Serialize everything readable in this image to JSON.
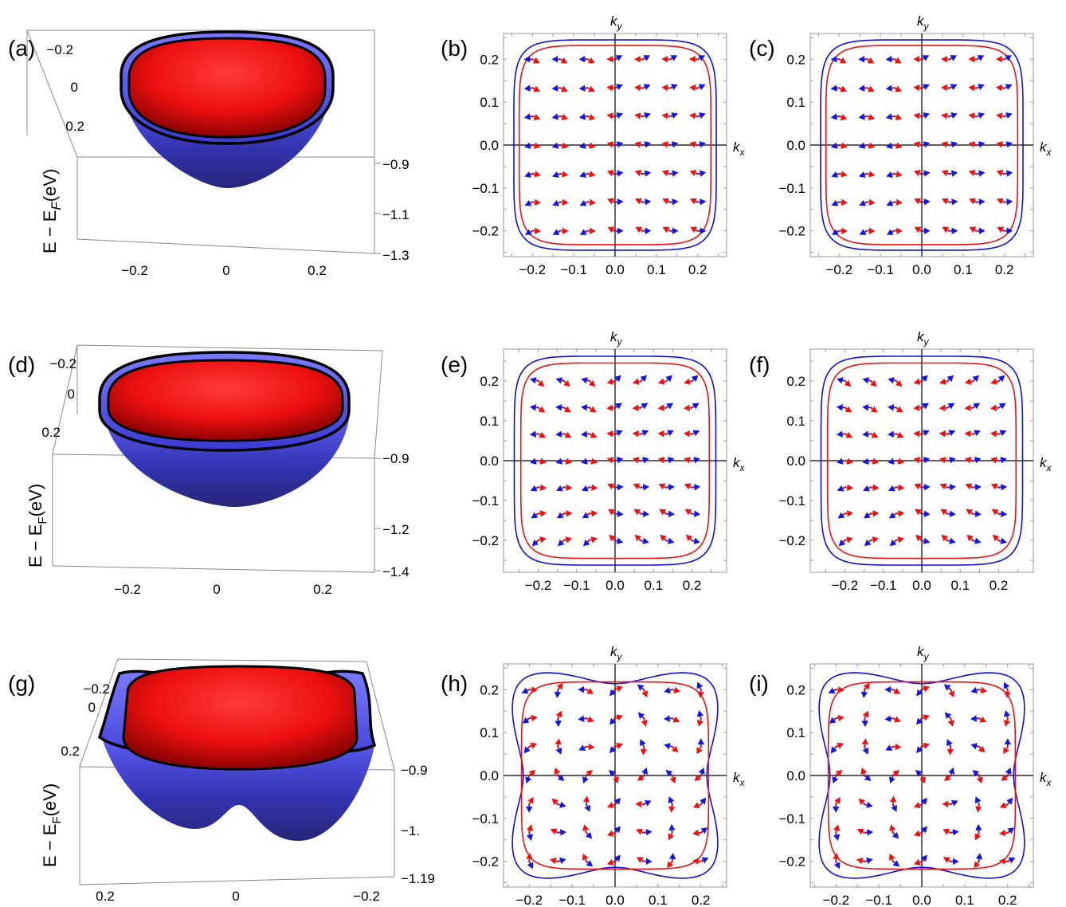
{
  "colors": {
    "outer_band": "#1010dd",
    "inner_band": "#ee1111",
    "arrow_blue": "#1515dd",
    "arrow_red": "#ee1111"
  },
  "surface_label": "E − E",
  "surface_label_sub": "F",
  "surface_label_unit": "(eV)",
  "axis_k_x": "k",
  "axis_k_x_sub": "x",
  "axis_k_y": "k",
  "axis_k_y_sub": "y",
  "chart_data": [
    {
      "id": "a",
      "type": "surface3d",
      "panel_label": "(a)",
      "left_ticks": [
        "−0.2",
        "0",
        "0.2"
      ],
      "bottom_ticks": [
        "−0.2",
        "0",
        "0.2"
      ],
      "right_ticks": [
        "−0.9",
        "−1.1",
        "−1.3"
      ],
      "zlim": [
        -1.3,
        -0.9
      ]
    },
    {
      "id": "b",
      "type": "contour_vector",
      "panel_label": "(b)",
      "xlim": [
        -0.27,
        0.27
      ],
      "ylim": [
        -0.26,
        0.26
      ],
      "x_ticks": [
        "−0.2",
        "−0.1",
        "0.0",
        "0.1",
        "0.2"
      ],
      "y_ticks": [
        "0.2",
        "0.1",
        "0.0",
        "−0.1",
        "−0.2"
      ],
      "outer_contour_radius": 0.245,
      "inner_contour_radius": 0.232,
      "squareness": 6
    },
    {
      "id": "c",
      "type": "contour_vector",
      "panel_label": "(c)",
      "xlim": [
        -0.27,
        0.27
      ],
      "ylim": [
        -0.26,
        0.26
      ],
      "x_ticks": [
        "−0.2",
        "−0.1",
        "0.0",
        "0.1",
        "0.2"
      ],
      "y_ticks": [
        "0.2",
        "0.1",
        "0.0",
        "−0.1",
        "−0.2"
      ],
      "outer_contour_radius": 0.245,
      "inner_contour_radius": 0.232,
      "squareness": 6
    },
    {
      "id": "d",
      "type": "surface3d",
      "panel_label": "(d)",
      "left_ticks": [
        "−0.2",
        "0",
        "0.2"
      ],
      "bottom_ticks": [
        "−0.2",
        "0",
        "0.2"
      ],
      "right_ticks": [
        "−0.9",
        "−1.2",
        "−1.4"
      ],
      "zlim": [
        -1.4,
        -0.9
      ]
    },
    {
      "id": "e",
      "type": "contour_vector",
      "panel_label": "(e)",
      "xlim": [
        -0.29,
        0.29
      ],
      "ylim": [
        -0.28,
        0.28
      ],
      "x_ticks": [
        "−0.2",
        "−0.1",
        "0.0",
        "0.1",
        "0.2"
      ],
      "y_ticks": [
        "0.2",
        "0.1",
        "0.0",
        "−0.1",
        "−0.2"
      ],
      "outer_contour_radius": 0.262,
      "inner_contour_radius": 0.245,
      "squareness": 6
    },
    {
      "id": "f",
      "type": "contour_vector",
      "panel_label": "(f)",
      "xlim": [
        -0.29,
        0.29
      ],
      "ylim": [
        -0.28,
        0.28
      ],
      "x_ticks": [
        "−0.2",
        "−0.1",
        "0.0",
        "0.1",
        "0.2"
      ],
      "y_ticks": [
        "0.2",
        "0.1",
        "0.0",
        "−0.1",
        "−0.2"
      ],
      "outer_contour_radius": 0.262,
      "inner_contour_radius": 0.245,
      "squareness": 6
    },
    {
      "id": "g",
      "type": "surface3d",
      "panel_label": "(g)",
      "left_ticks": [
        "−0.2",
        "0",
        "0.2"
      ],
      "bottom_ticks": [
        "0.2",
        "0",
        "−0.2"
      ],
      "right_ticks": [
        "−0.9",
        "−1.",
        "−1.19"
      ],
      "zlim": [
        -1.19,
        -0.9
      ]
    },
    {
      "id": "h",
      "type": "contour_vector",
      "panel_label": "(h)",
      "xlim": [
        -0.26,
        0.26
      ],
      "ylim": [
        -0.26,
        0.26
      ],
      "x_ticks": [
        "−0.2",
        "−0.1",
        "0.0",
        "0.1",
        "0.2"
      ],
      "y_ticks": [
        "0.2",
        "0.1",
        "0.0",
        "−0.1",
        "−0.2"
      ],
      "outer_contour_radius": 0.232,
      "inner_contour_radius": 0.218,
      "squareness": 6,
      "outer_wobble": 0.018
    },
    {
      "id": "i",
      "type": "contour_vector",
      "panel_label": "(i)",
      "xlim": [
        -0.26,
        0.26
      ],
      "ylim": [
        -0.26,
        0.26
      ],
      "x_ticks": [
        "−0.2",
        "−0.1",
        "0.0",
        "0.1",
        "0.2"
      ],
      "y_ticks": [
        "0.2",
        "0.1",
        "0.0",
        "−0.1",
        "−0.2"
      ],
      "outer_contour_radius": 0.232,
      "inner_contour_radius": 0.218,
      "squareness": 6,
      "outer_wobble": 0.018
    }
  ]
}
